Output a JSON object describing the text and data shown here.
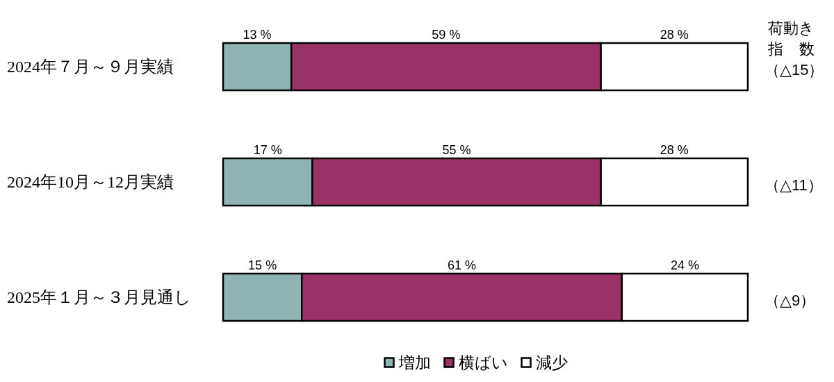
{
  "chart_data": {
    "type": "bar",
    "orientation": "horizontal",
    "stacked": true,
    "tick_labels": "y",
    "legend": "bottom",
    "categories": [
      "2024年７月～９月実績",
      "2024年10月～12月実績",
      "2025年１月～３月見通し"
    ],
    "series": [
      {
        "name": "増加",
        "color": "#8fb4b4",
        "values": [
          13,
          17,
          15
        ],
        "value_labels": [
          "13 %",
          "17 %",
          "15 %"
        ]
      },
      {
        "name": "横ばい",
        "color": "#993366",
        "values": [
          59,
          55,
          61
        ],
        "value_labels": [
          "59 %",
          "55 %",
          "61 %"
        ]
      },
      {
        "name": "減少",
        "color": "#ffffff",
        "values": [
          28,
          28,
          24
        ],
        "value_labels": [
          "28 %",
          "28 %",
          "24 %"
        ]
      }
    ],
    "annotations": [
      "荷動き指数",
      "（△15）",
      "（△11）",
      "（△9）"
    ]
  }
}
